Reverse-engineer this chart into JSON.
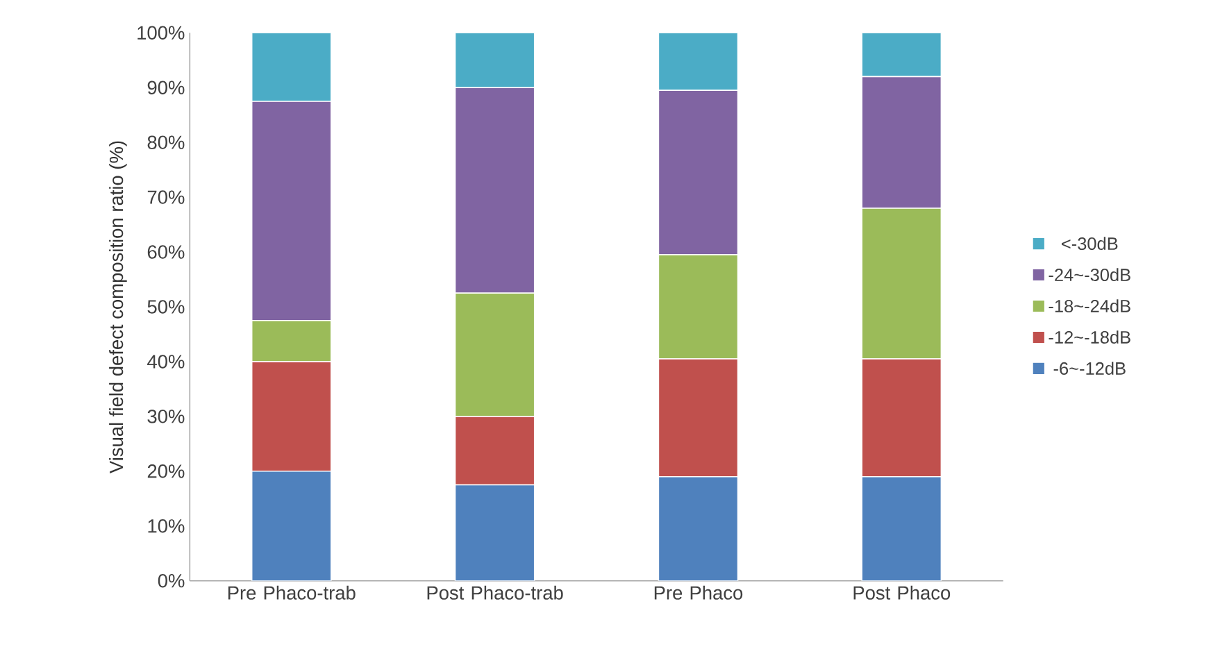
{
  "chart_data": {
    "type": "bar",
    "stacked": true,
    "ylabel": "Visual field defect composition ratio (%)",
    "categories": [
      "Pre Phaco-trab",
      "Post Phaco-trab",
      "Pre Phaco",
      "Post Phaco"
    ],
    "series": [
      {
        "name": "-6~-12dB",
        "color": "#4f81bd",
        "values": [
          20,
          17.5,
          19,
          19
        ]
      },
      {
        "name": "-12~-18dB",
        "color": "#c0504d",
        "values": [
          20,
          12.5,
          21.5,
          21.5
        ]
      },
      {
        "name": "-18~-24dB",
        "color": "#9bbb59",
        "values": [
          7.5,
          22.5,
          19,
          27.5
        ]
      },
      {
        "name": "-24~-30dB",
        "color": "#8064a2",
        "values": [
          40,
          37.5,
          30,
          24
        ]
      },
      {
        "name": "<-30dB",
        "color": "#4bacc6",
        "values": [
          12.5,
          10,
          10.5,
          8
        ]
      }
    ],
    "ylim": [
      0,
      100
    ],
    "yticks": [
      {
        "value": 0,
        "label": "0%"
      },
      {
        "value": 10,
        "label": "10%"
      },
      {
        "value": 20,
        "label": "20%"
      },
      {
        "value": 30,
        "label": "30%"
      },
      {
        "value": 40,
        "label": "40%"
      },
      {
        "value": 50,
        "label": "50%"
      },
      {
        "value": 60,
        "label": "60%"
      },
      {
        "value": 70,
        "label": "70%"
      },
      {
        "value": 80,
        "label": "80%"
      },
      {
        "value": 90,
        "label": "90%"
      },
      {
        "value": 100,
        "label": "100%"
      }
    ],
    "legend": "right"
  }
}
